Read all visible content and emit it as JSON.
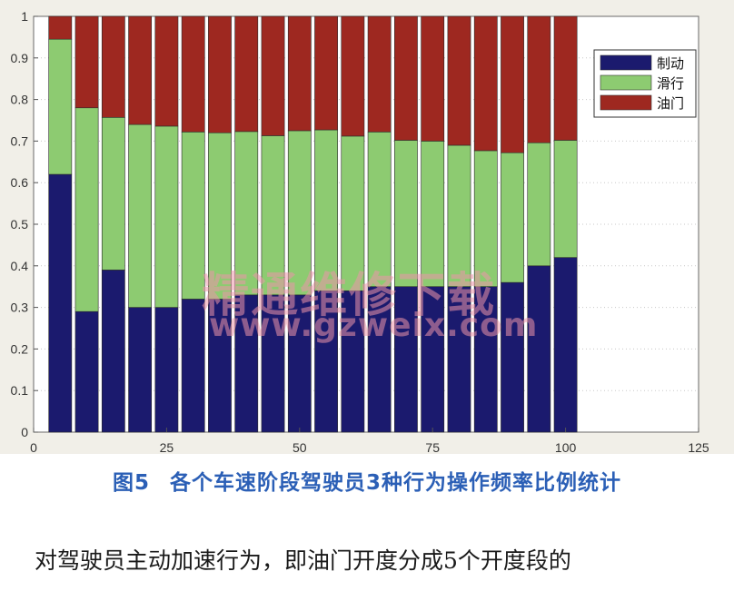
{
  "chart_data": {
    "type": "bar",
    "stacked": true,
    "x": [
      5,
      10,
      15,
      20,
      25,
      30,
      35,
      40,
      45,
      50,
      55,
      60,
      65,
      70,
      75,
      80,
      85,
      90,
      95,
      100
    ],
    "series": [
      {
        "name": "制动",
        "color": "#1b1a6e",
        "values": [
          0.62,
          0.29,
          0.39,
          0.3,
          0.3,
          0.32,
          0.32,
          0.33,
          0.33,
          0.33,
          0.34,
          0.34,
          0.35,
          0.35,
          0.35,
          0.35,
          0.35,
          0.36,
          0.4,
          0.42
        ]
      },
      {
        "name": "滑行",
        "color": "#8dcb71",
        "values": [
          0.325,
          0.49,
          0.367,
          0.44,
          0.436,
          0.402,
          0.4,
          0.393,
          0.383,
          0.395,
          0.387,
          0.372,
          0.372,
          0.352,
          0.35,
          0.34,
          0.327,
          0.312,
          0.296,
          0.282
        ]
      },
      {
        "name": "油门",
        "color": "#9e2820",
        "values": [
          0.055,
          0.22,
          0.243,
          0.26,
          0.264,
          0.278,
          0.28,
          0.277,
          0.287,
          0.275,
          0.273,
          0.288,
          0.278,
          0.298,
          0.3,
          0.31,
          0.323,
          0.328,
          0.304,
          0.298
        ]
      }
    ],
    "xlim": [
      0,
      125
    ],
    "ylim": [
      0,
      1
    ],
    "xticks": [
      0,
      25,
      50,
      75,
      100,
      125
    ],
    "yticks": [
      0,
      0.1,
      0.2,
      0.3,
      0.4,
      0.5,
      0.6,
      0.7,
      0.8,
      0.9,
      1
    ],
    "ytick_labels": [
      "0",
      "0.1",
      "0.2",
      "0.3",
      "0.4",
      "0.5",
      "0.6",
      "0.7",
      "0.8",
      "0.9",
      "1"
    ],
    "grid": true,
    "legend_position": "top-right",
    "title": "",
    "xlabel": "",
    "ylabel": ""
  },
  "caption": {
    "figure_number": "图5",
    "text": "各个车速阶段驾驶员3种行为操作频率比例统计"
  },
  "body_text": "对驾驶员主动加速行为，即油门开度分成5个开度段的",
  "watermark": {
    "chinese": "精通维修下载",
    "url": "www.gzweix.com"
  }
}
